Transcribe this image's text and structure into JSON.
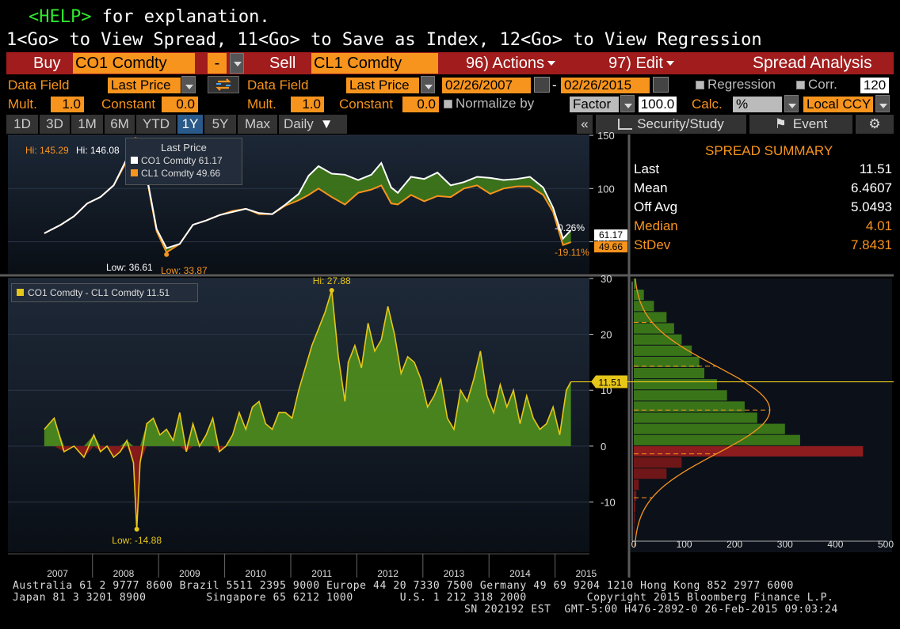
{
  "command": {
    "help_key": "<HELP>",
    "help_text": " for explanation.",
    "line2": "1<Go> to View Spread, 11<Go> to Save as Index, 12<Go> to View Regression"
  },
  "toolbar": {
    "buy_label": "Buy",
    "security1": "CO1 Comdty",
    "operator": "-",
    "sell_label": "Sell",
    "security2": "CL1 Comdty",
    "actions_label": "96) Actions",
    "edit_label": "97) Edit",
    "title": "Spread Analysis"
  },
  "settings": {
    "data_field_label": "Data Field",
    "data_field1": "Last Price",
    "data_field2": "Last Price",
    "start_date": "02/26/2007",
    "date_sep": "-",
    "end_date": "02/26/2015",
    "regression_label": "Regression",
    "corr_label": "Corr.",
    "corr_value": "120",
    "mult_label": "Mult.",
    "mult1": "1.0",
    "constant_label": "Constant",
    "constant1": "0.0",
    "mult2": "1.0",
    "constant2": "0.0",
    "normalize_label": "Normalize by",
    "factor_label": "Factor",
    "factor_value": "100.0",
    "calc_label": "Calc.",
    "calc_value": "%",
    "ccy_value": "Local CCY"
  },
  "periods": [
    "1D",
    "3D",
    "1M",
    "6M",
    "YTD",
    "1Y",
    "5Y",
    "Max"
  ],
  "active_period": "1Y",
  "frequency": "Daily",
  "panel_buttons": {
    "collapse": "«",
    "study": "Security/Study",
    "event": "Event"
  },
  "summary": {
    "title": "SPREAD SUMMARY",
    "rows": [
      {
        "label": "Last",
        "value": "11.51",
        "color": "#ffffff"
      },
      {
        "label": "Mean",
        "value": "6.4607",
        "color": "#ffffff"
      },
      {
        "label": "Off Avg",
        "value": "5.0493",
        "color": "#ffffff"
      },
      {
        "label": "Median",
        "value": "4.01",
        "color": "#f7941d"
      },
      {
        "label": "StDev",
        "value": "7.8431",
        "color": "#f7941d"
      }
    ]
  },
  "colors": {
    "orange": "#f7941d",
    "toolbar_red": "#a11c1c",
    "green_fill": "#4f8f1e",
    "red_fill": "#8b1a1a",
    "spread_line": "#e6c619"
  },
  "chart_data": [
    {
      "type": "line",
      "legend_title": "Last Price",
      "legend_placement": "top-left",
      "x_tick_labels": [
        "2007",
        "2008",
        "2009",
        "2010",
        "2011",
        "2012",
        "2013",
        "2014",
        "2015"
      ],
      "ylim": [
        20,
        150
      ],
      "yticks": [
        50,
        100,
        150
      ],
      "annotations": {
        "hi1": "Hi: 145.29",
        "hi2": "Hi: 146.08",
        "low1": "Low: 36.61",
        "low2": "Low: 33.87",
        "chg1": "-0.26%",
        "chg2": "-19.11%"
      },
      "series": [
        {
          "name": "CO1 Comdty",
          "legend": "CO1 Comdty 61.17",
          "last_label": "61.17",
          "last": 61.17,
          "color": "#ffffff",
          "x": [
            2007.15,
            2007.4,
            2007.6,
            2007.8,
            2008.0,
            2008.2,
            2008.4,
            2008.53,
            2008.7,
            2008.85,
            2009.0,
            2009.2,
            2009.4,
            2009.6,
            2009.8,
            2010.0,
            2010.2,
            2010.4,
            2010.6,
            2010.8,
            2011.0,
            2011.15,
            2011.3,
            2011.5,
            2011.7,
            2011.9,
            2012.1,
            2012.25,
            2012.4,
            2012.5,
            2012.7,
            2012.9,
            2013.1,
            2013.3,
            2013.5,
            2013.7,
            2013.9,
            2014.1,
            2014.3,
            2014.5,
            2014.7,
            2014.85,
            2015.0,
            2015.12
          ],
          "y": [
            58,
            66,
            74,
            86,
            92,
            103,
            128,
            146,
            112,
            62,
            44,
            48,
            66,
            70,
            75,
            78,
            81,
            77,
            76,
            85,
            95,
            112,
            121,
            114,
            113,
            108,
            113,
            124,
            101,
            96,
            111,
            109,
            115,
            103,
            106,
            111,
            110,
            108,
            109,
            111,
            101,
            82,
            53,
            61
          ]
        },
        {
          "name": "CL1 Comdty",
          "legend": "CL1 Comdty 49.66",
          "last_label": "49.66",
          "last": 49.66,
          "color": "#f7941d",
          "x": [
            2007.15,
            2007.4,
            2007.6,
            2007.8,
            2008.0,
            2008.2,
            2008.4,
            2008.53,
            2008.7,
            2008.85,
            2009.0,
            2009.2,
            2009.4,
            2009.6,
            2009.8,
            2010.0,
            2010.2,
            2010.4,
            2010.6,
            2010.8,
            2011.0,
            2011.15,
            2011.3,
            2011.5,
            2011.7,
            2011.9,
            2012.1,
            2012.25,
            2012.4,
            2012.5,
            2012.7,
            2012.9,
            2013.1,
            2013.3,
            2013.5,
            2013.7,
            2013.9,
            2014.1,
            2014.3,
            2014.5,
            2014.7,
            2014.85,
            2015.0,
            2015.12
          ],
          "y": [
            58,
            66,
            74,
            86,
            92,
            103,
            126,
            145,
            110,
            60,
            40,
            48,
            66,
            70,
            75,
            79,
            81,
            76,
            76,
            84,
            89,
            94,
            100,
            92,
            85,
            96,
            99,
            103,
            86,
            85,
            94,
            88,
            93,
            92,
            100,
            103,
            95,
            100,
            102,
            102,
            94,
            78,
            47,
            49.66
          ]
        }
      ]
    },
    {
      "type": "area",
      "legend": "CO1 Comdty - CL1 Comdty 11.51",
      "last_label": "11.51",
      "last": 11.51,
      "hi_label": "Hi: 27.88",
      "low_label": "Low: -14.88",
      "ylim": [
        -19,
        30
      ],
      "yticks": [
        -10,
        0,
        10,
        20,
        30
      ],
      "x": [
        2007.15,
        2007.3,
        2007.45,
        2007.6,
        2007.75,
        2007.9,
        2008.0,
        2008.1,
        2008.2,
        2008.3,
        2008.4,
        2008.5,
        2008.55,
        2008.6,
        2008.7,
        2008.8,
        2008.9,
        2009.0,
        2009.1,
        2009.2,
        2009.3,
        2009.4,
        2009.5,
        2009.6,
        2009.7,
        2009.8,
        2009.9,
        2010.0,
        2010.1,
        2010.2,
        2010.3,
        2010.4,
        2010.5,
        2010.6,
        2010.7,
        2010.8,
        2010.9,
        2011.0,
        2011.1,
        2011.2,
        2011.3,
        2011.4,
        2011.5,
        2011.6,
        2011.7,
        2011.75,
        2011.85,
        2011.95,
        2012.05,
        2012.15,
        2012.25,
        2012.35,
        2012.45,
        2012.55,
        2012.65,
        2012.75,
        2012.85,
        2012.95,
        2013.05,
        2013.15,
        2013.25,
        2013.35,
        2013.45,
        2013.55,
        2013.65,
        2013.75,
        2013.85,
        2013.95,
        2014.05,
        2014.15,
        2014.25,
        2014.35,
        2014.45,
        2014.55,
        2014.65,
        2014.75,
        2014.85,
        2014.95,
        2015.05,
        2015.12
      ],
      "y": [
        3,
        5,
        -1,
        0,
        -2,
        2,
        -1,
        0,
        -2,
        -1,
        1,
        -3,
        -14.88,
        -3,
        4,
        5,
        2,
        3,
        1,
        6,
        -1,
        4,
        0,
        2,
        5,
        -1,
        0,
        2,
        6,
        3,
        7,
        8,
        4,
        3,
        6,
        6,
        5,
        10,
        14,
        18,
        21,
        24,
        27.88,
        16,
        8,
        15,
        18,
        14,
        22,
        17,
        19,
        25,
        20,
        13,
        16,
        15,
        12,
        7,
        9,
        12,
        5,
        3,
        10,
        8,
        12,
        17,
        9,
        6,
        11,
        7,
        10,
        4,
        9,
        5,
        3,
        4,
        7,
        2,
        10,
        11.51
      ]
    },
    {
      "type": "bar",
      "orientation": "horizontal",
      "xticks": [
        0,
        100,
        200,
        300,
        400,
        500
      ],
      "xlim": [
        0,
        500
      ],
      "bins_center": [
        29,
        27,
        25,
        23,
        21,
        19,
        17,
        15,
        13,
        11,
        9,
        7,
        5,
        3,
        1,
        -1,
        -3,
        -5,
        -7,
        -9,
        -11,
        -13,
        -15
      ],
      "counts": [
        4,
        20,
        40,
        65,
        80,
        95,
        115,
        130,
        140,
        165,
        185,
        220,
        245,
        300,
        330,
        455,
        95,
        65,
        10,
        5,
        3,
        2,
        1
      ],
      "fit": {
        "mean": 6.4607,
        "stdev": 7.8431
      }
    }
  ],
  "footer": {
    "line1": "Australia 61 2 9777 8600 Brazil 5511 2395 9000 Europe 44 20 7330 7500 Germany 49 69 9204 1210 Hong Kong 852 2977 6000",
    "line2": "Japan 81 3 3201 8900         Singapore 65 6212 1000       U.S. 1 212 318 2000         Copyright 2015 Bloomberg Finance L.P.",
    "line3": "SN 202192 EST  GMT-5:00 H476-2892-0 26-Feb-2015 09:03:24"
  }
}
